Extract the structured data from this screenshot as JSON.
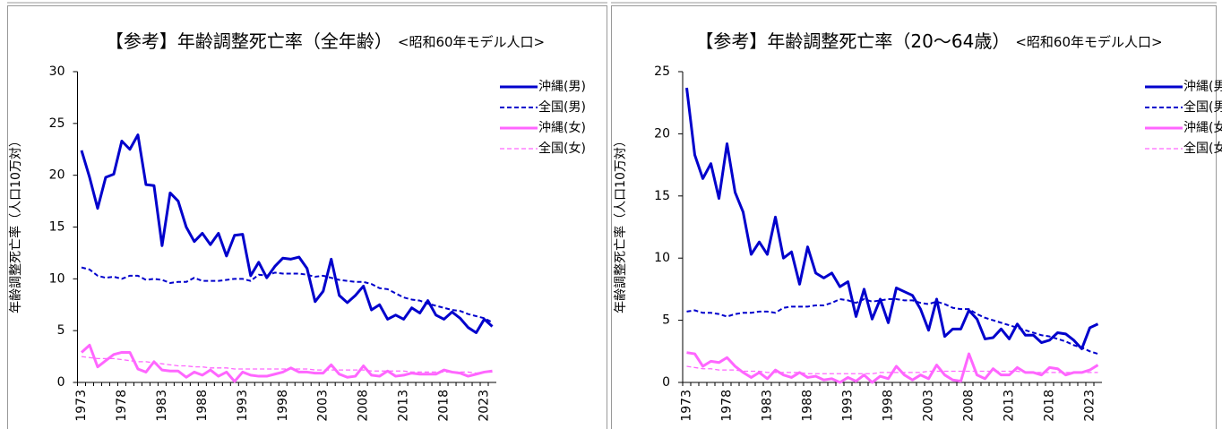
{
  "chart_data": [
    {
      "type": "line",
      "title": "【参考】年齢調整死亡率（全年齢）",
      "subtitle": "<昭和60年モデル人口>",
      "y_label": "年齢調整死亡率（人口10万対）",
      "categories": [
        "1973",
        null,
        null,
        null,
        null,
        "1978",
        null,
        null,
        null,
        null,
        "1983",
        null,
        null,
        null,
        null,
        "1988",
        null,
        null,
        null,
        null,
        "1993",
        null,
        null,
        null,
        null,
        "1998",
        null,
        null,
        null,
        null,
        "2003",
        null,
        null,
        null,
        null,
        "2008",
        null,
        null,
        null,
        null,
        "2013",
        null,
        null,
        null,
        null,
        "2018",
        null,
        null,
        null,
        null,
        "2023",
        null
      ],
      "ylim": [
        0,
        30
      ],
      "yticks": [
        0,
        5,
        10,
        15,
        20,
        25,
        30
      ],
      "legend": "upper right",
      "series": [
        {
          "name": "沖縄(男)",
          "color": "#0000cc",
          "line_style": "solid",
          "values": [
            22.4,
            19.8,
            16.8,
            19.8,
            20.1,
            23.3,
            22.5,
            23.9,
            19.1,
            19.0,
            13.2,
            18.3,
            17.5,
            15.0,
            13.6,
            14.4,
            13.3,
            14.4,
            12.2,
            14.2,
            14.3,
            10.3,
            11.6,
            10.1,
            11.2,
            12.0,
            11.9,
            12.1,
            11.0,
            7.8,
            8.8,
            11.9,
            8.4,
            7.7,
            8.4,
            9.3,
            7.0,
            7.5,
            6.1,
            6.5,
            6.1,
            7.2,
            6.7,
            7.9,
            6.5,
            6.1,
            6.8,
            6.2,
            5.3,
            4.8,
            6.1,
            5.4
          ]
        },
        {
          "name": "全国(男)",
          "color": "#0000cc",
          "line_style": "dashed",
          "values": [
            11.1,
            10.9,
            10.3,
            10.1,
            10.2,
            10.0,
            10.3,
            10.3,
            9.9,
            10.0,
            9.9,
            9.6,
            9.7,
            9.7,
            10.1,
            9.8,
            9.8,
            9.8,
            9.9,
            10.0,
            10.0,
            9.8,
            10.4,
            10.3,
            10.6,
            10.5,
            10.5,
            10.5,
            10.4,
            10.2,
            10.3,
            10.1,
            9.9,
            9.8,
            9.7,
            9.7,
            9.5,
            9.1,
            9.0,
            8.6,
            8.2,
            8.0,
            7.9,
            7.6,
            7.4,
            7.2,
            7.0,
            6.9,
            6.6,
            6.4,
            6.2,
            5.8
          ]
        },
        {
          "name": "沖縄(女)",
          "color": "#ff66ff",
          "line_style": "solid",
          "values": [
            2.9,
            3.6,
            1.5,
            2.1,
            2.7,
            2.9,
            2.9,
            1.3,
            1.0,
            2.0,
            1.2,
            1.1,
            1.1,
            0.5,
            1.0,
            0.7,
            1.2,
            0.6,
            1.0,
            0.1,
            1.0,
            0.7,
            0.6,
            0.6,
            0.8,
            1.0,
            1.4,
            1.0,
            1.0,
            0.9,
            0.9,
            1.7,
            0.8,
            0.5,
            0.6,
            1.6,
            0.7,
            0.6,
            1.1,
            0.6,
            0.7,
            0.9,
            0.8,
            0.8,
            0.8,
            1.2,
            1.0,
            0.9,
            0.6,
            0.8,
            1.0,
            1.1
          ]
        },
        {
          "name": "全国(女)",
          "color": "#ff66ff",
          "line_style": "dashed",
          "values": [
            2.5,
            2.4,
            2.3,
            2.3,
            2.3,
            2.2,
            2.1,
            2.0,
            2.0,
            1.9,
            1.8,
            1.7,
            1.6,
            1.6,
            1.5,
            1.5,
            1.4,
            1.4,
            1.4,
            1.3,
            1.3,
            1.3,
            1.3,
            1.3,
            1.3,
            1.3,
            1.3,
            1.3,
            1.3,
            1.2,
            1.2,
            1.2,
            1.2,
            1.2,
            1.2,
            1.2,
            1.1,
            1.1,
            1.1,
            1.1,
            1.1,
            1.0,
            1.0,
            1.0,
            1.0,
            1.0,
            1.0,
            1.0,
            1.0,
            0.9,
            1.0,
            1.0
          ]
        }
      ]
    },
    {
      "type": "line",
      "title": "【参考】年齢調整死亡率（20～64歳）",
      "subtitle": "<昭和60年モデル人口>",
      "y_label": "年齢調整死亡率（人口10万対）",
      "categories": [
        "1973",
        null,
        null,
        null,
        null,
        "1978",
        null,
        null,
        null,
        null,
        "1983",
        null,
        null,
        null,
        null,
        "1988",
        null,
        null,
        null,
        null,
        "1993",
        null,
        null,
        null,
        null,
        "1998",
        null,
        null,
        null,
        null,
        "2003",
        null,
        null,
        null,
        null,
        "2008",
        null,
        null,
        null,
        null,
        "2013",
        null,
        null,
        null,
        null,
        "2018",
        null,
        null,
        null,
        null,
        "2023",
        null
      ],
      "ylim": [
        0,
        25
      ],
      "yticks": [
        0,
        5,
        10,
        15,
        20,
        25
      ],
      "legend": "upper right",
      "series": [
        {
          "name": "沖縄(男)",
          "color": "#0000cc",
          "line_style": "solid",
          "values": [
            23.7,
            18.3,
            16.4,
            17.6,
            14.8,
            19.2,
            15.3,
            13.7,
            10.3,
            11.3,
            10.3,
            13.3,
            10.0,
            10.5,
            7.9,
            10.9,
            8.8,
            8.4,
            8.8,
            7.7,
            8.1,
            5.3,
            7.5,
            5.1,
            6.7,
            4.8,
            7.6,
            7.3,
            7.0,
            5.9,
            4.2,
            6.7,
            3.7,
            4.3,
            4.3,
            5.8,
            5.1,
            3.5,
            3.6,
            4.3,
            3.5,
            4.7,
            3.8,
            3.8,
            3.2,
            3.4,
            4.0,
            3.9,
            3.4,
            2.7,
            4.4,
            4.7
          ]
        },
        {
          "name": "全国(男)",
          "color": "#0000cc",
          "line_style": "dashed",
          "values": [
            5.7,
            5.8,
            5.6,
            5.6,
            5.5,
            5.3,
            5.5,
            5.6,
            5.6,
            5.7,
            5.7,
            5.6,
            6.0,
            6.1,
            6.1,
            6.1,
            6.2,
            6.2,
            6.4,
            6.7,
            6.6,
            6.4,
            6.7,
            6.5,
            6.6,
            6.7,
            6.7,
            6.6,
            6.6,
            6.4,
            6.3,
            6.5,
            6.3,
            6.0,
            5.9,
            5.9,
            5.5,
            5.2,
            5.0,
            4.8,
            4.6,
            4.4,
            4.2,
            4.0,
            3.8,
            3.7,
            3.5,
            3.3,
            3.0,
            2.8,
            2.5,
            2.3
          ]
        },
        {
          "name": "沖縄(女)",
          "color": "#ff66ff",
          "line_style": "solid",
          "values": [
            2.4,
            2.3,
            1.3,
            1.7,
            1.6,
            2.0,
            1.3,
            0.8,
            0.4,
            0.8,
            0.3,
            1.0,
            0.6,
            0.4,
            0.8,
            0.4,
            0.5,
            0.2,
            0.3,
            0.0,
            0.4,
            0.1,
            0.6,
            0.0,
            0.5,
            0.3,
            1.3,
            0.6,
            0.2,
            0.6,
            0.3,
            1.4,
            0.6,
            0.2,
            0.1,
            2.3,
            0.6,
            0.3,
            1.1,
            0.6,
            0.6,
            1.2,
            0.8,
            0.8,
            0.6,
            1.2,
            1.1,
            0.6,
            0.8,
            0.8,
            1.0,
            1.4
          ]
        },
        {
          "name": "全国(女)",
          "color": "#ff66ff",
          "line_style": "dashed",
          "values": [
            1.3,
            1.2,
            1.1,
            1.1,
            1.0,
            1.0,
            1.0,
            0.9,
            0.9,
            0.9,
            0.8,
            0.8,
            0.8,
            0.8,
            0.8,
            0.7,
            0.7,
            0.7,
            0.7,
            0.7,
            0.7,
            0.7,
            0.7,
            0.7,
            0.8,
            0.8,
            0.8,
            0.8,
            0.8,
            0.8,
            0.9,
            0.9,
            0.9,
            0.9,
            0.9,
            0.9,
            0.9,
            0.9,
            0.9,
            0.9,
            0.9,
            0.9,
            0.8,
            0.8,
            0.8,
            0.8,
            0.8,
            0.8,
            0.8,
            0.8,
            0.8,
            0.8
          ]
        }
      ]
    }
  ]
}
